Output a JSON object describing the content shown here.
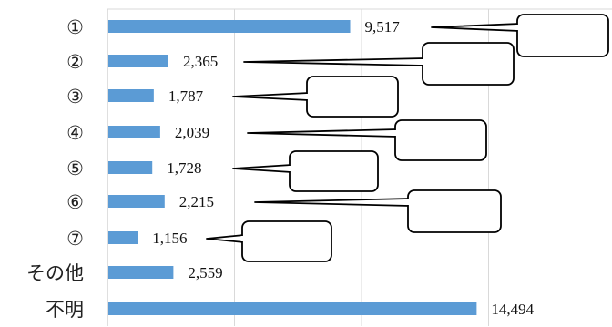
{
  "chart_data": {
    "type": "bar",
    "orientation": "horizontal",
    "categories": [
      "①",
      "②",
      "③",
      "④",
      "⑤",
      "⑥",
      "⑦",
      "その他",
      "不明"
    ],
    "values": [
      9517,
      2365,
      1787,
      2039,
      1728,
      2215,
      1156,
      2559,
      14494
    ],
    "value_labels": [
      "9,517",
      "2,365",
      "1,787",
      "2,039",
      "1,728",
      "2,215",
      "1,156",
      "2,559",
      "14,494"
    ],
    "xlim": [
      0,
      20000
    ],
    "grid": true,
    "legend": "none",
    "bar_color": "#5b9bd5",
    "callout_boxes": "empty rounded boxes linked to bars ①–⑦"
  }
}
